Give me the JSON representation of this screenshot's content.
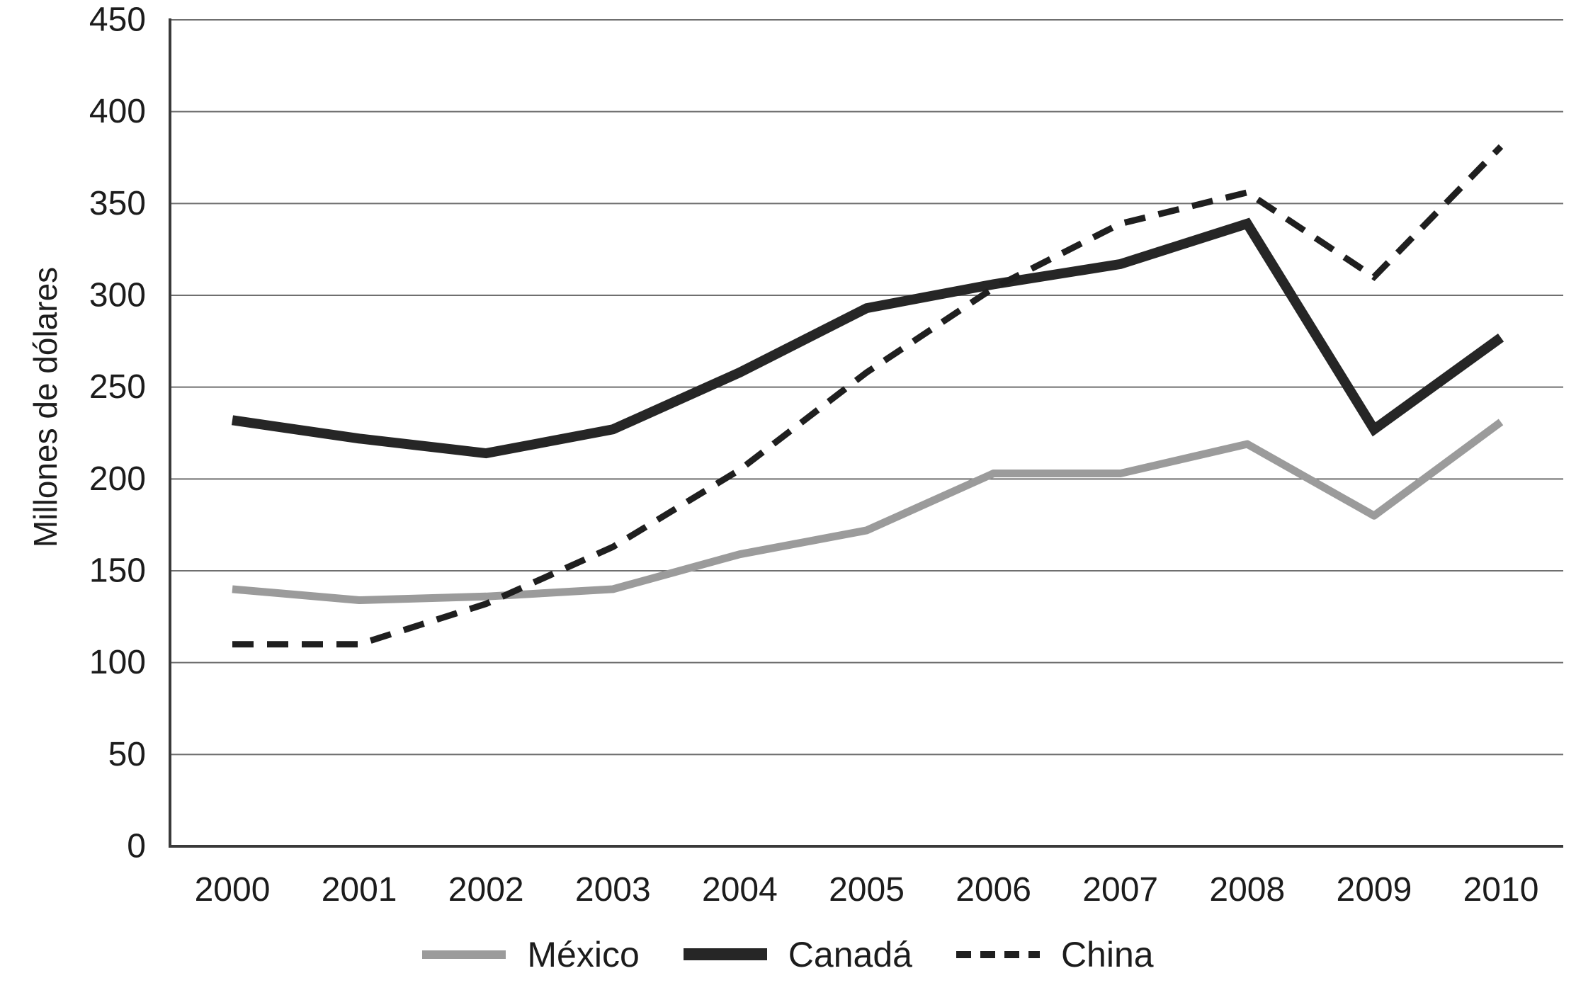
{
  "figure": {
    "background": "#ffffff"
  },
  "axes": {
    "grid_color": "#6f6f6f",
    "axis_color": "#3a3a3a",
    "text_color": "#1c1c1c"
  },
  "chart_data": {
    "type": "line",
    "title": "",
    "xlabel": "",
    "ylabel": "Millones de dólares",
    "categories": [
      "2000",
      "2001",
      "2002",
      "2003",
      "2004",
      "2005",
      "2006",
      "2007",
      "2008",
      "2009",
      "2010"
    ],
    "ylim": [
      0,
      450
    ],
    "yticks": [
      0,
      50,
      100,
      150,
      200,
      250,
      300,
      350,
      400,
      450
    ],
    "grid": "horizontal-only",
    "legend_position": "bottom-center",
    "series": [
      {
        "name": "México",
        "key": "mexico",
        "color": "#9b9b9b",
        "style": "solid",
        "values": [
          140,
          134,
          136,
          140,
          159,
          172,
          203,
          203,
          219,
          180,
          231
        ]
      },
      {
        "name": "Canadá",
        "key": "canada",
        "color": "#262626",
        "style": "solid",
        "values": [
          232,
          222,
          214,
          227,
          258,
          293,
          306,
          317,
          339,
          227,
          277
        ]
      },
      {
        "name": "China",
        "key": "china",
        "color": "#1f1f1f",
        "style": "dashed",
        "values": [
          110,
          110,
          132,
          163,
          205,
          258,
          304,
          339,
          356,
          310,
          381
        ]
      }
    ]
  }
}
